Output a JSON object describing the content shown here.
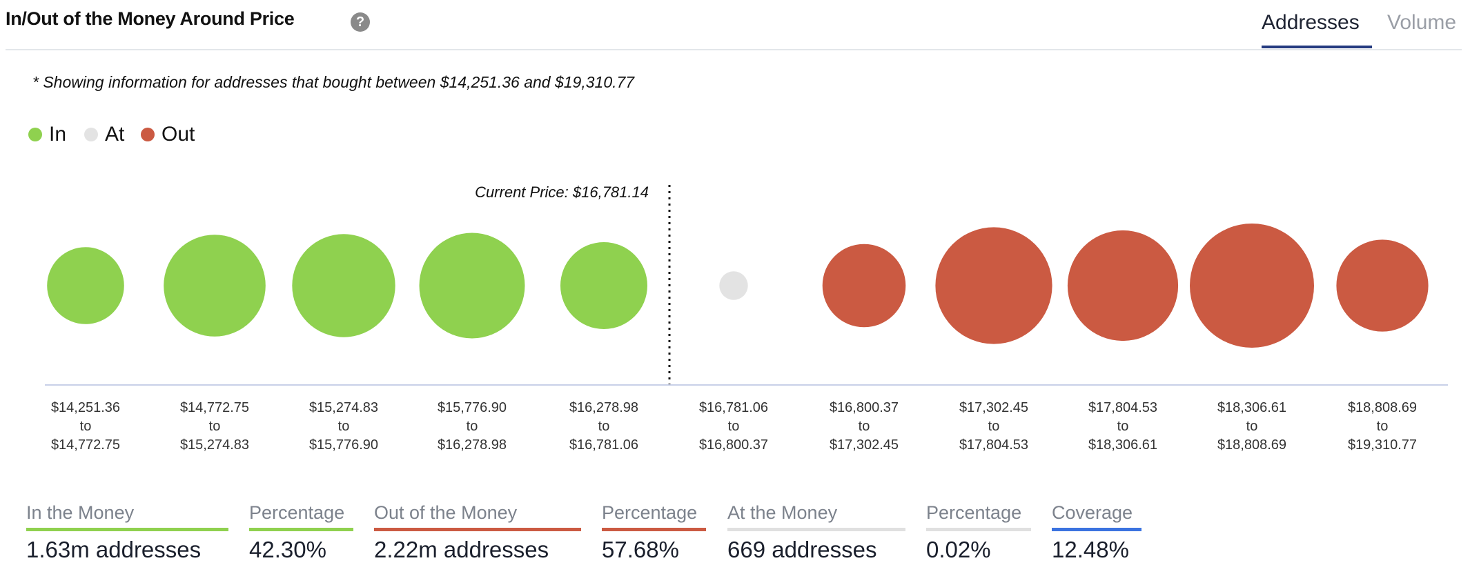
{
  "header": {
    "title": "In/Out of the Money Around Price",
    "help_icon": "?",
    "tabs": [
      {
        "label": "Addresses",
        "active": true
      },
      {
        "label": "Volume",
        "active": false
      }
    ]
  },
  "note": "* Showing information for addresses that bought between $14,251.36 and $19,310.77",
  "legend": [
    {
      "label": "In",
      "color": "#8fd14f"
    },
    {
      "label": "At",
      "color": "#e3e3e3"
    },
    {
      "label": "Out",
      "color": "#cb5a42"
    }
  ],
  "chart_data": {
    "type": "bubble",
    "current_price_label": "Current Price: $16,781.14",
    "current_price_after_index": 4,
    "colors": {
      "in": "#8fd14f",
      "at": "#e3e3e3",
      "out": "#cb5a42"
    },
    "ranges": [
      {
        "from": "$14,251.36",
        "to": "$14,772.75",
        "sep": "to",
        "status": "in",
        "relative_size": 0.62
      },
      {
        "from": "$14,772.75",
        "to": "$15,274.83",
        "sep": "to",
        "status": "in",
        "relative_size": 0.82
      },
      {
        "from": "$15,274.83",
        "to": "$15,776.90",
        "sep": "to",
        "status": "in",
        "relative_size": 0.83
      },
      {
        "from": "$15,776.90",
        "to": "$16,278.98",
        "sep": "to",
        "status": "in",
        "relative_size": 0.85
      },
      {
        "from": "$16,278.98",
        "to": "$16,781.06",
        "sep": "to",
        "status": "in",
        "relative_size": 0.7
      },
      {
        "from": "$16,781.06",
        "to": "$16,800.37",
        "sep": "to",
        "status": "at",
        "relative_size": 0.23
      },
      {
        "from": "$16,800.37",
        "to": "$17,302.45",
        "sep": "to",
        "status": "out",
        "relative_size": 0.67
      },
      {
        "from": "$17,302.45",
        "to": "$17,804.53",
        "sep": "to",
        "status": "out",
        "relative_size": 0.94
      },
      {
        "from": "$17,804.53",
        "to": "$18,306.61",
        "sep": "to",
        "status": "out",
        "relative_size": 0.89
      },
      {
        "from": "$18,306.61",
        "to": "$18,808.69",
        "sep": "to",
        "status": "out",
        "relative_size": 1.0
      },
      {
        "from": "$18,808.69",
        "to": "$19,310.77",
        "sep": "to",
        "status": "out",
        "relative_size": 0.74
      }
    ]
  },
  "stats": [
    {
      "label": "In the Money",
      "value": "1.63m addresses",
      "color": "#8fd14f"
    },
    {
      "label": "Percentage",
      "value": "42.30%",
      "color": "#8fd14f"
    },
    {
      "label": "Out of the Money",
      "value": "2.22m addresses",
      "color": "#cb5a42"
    },
    {
      "label": "Percentage",
      "value": "57.68%",
      "color": "#cb5a42"
    },
    {
      "label": "At the Money",
      "value": "669 addresses",
      "color": "#e0e0e0"
    },
    {
      "label": "Percentage",
      "value": "0.02%",
      "color": "#e0e0e0"
    },
    {
      "label": "Coverage",
      "value": "12.48%",
      "color": "#3b73e0"
    }
  ]
}
